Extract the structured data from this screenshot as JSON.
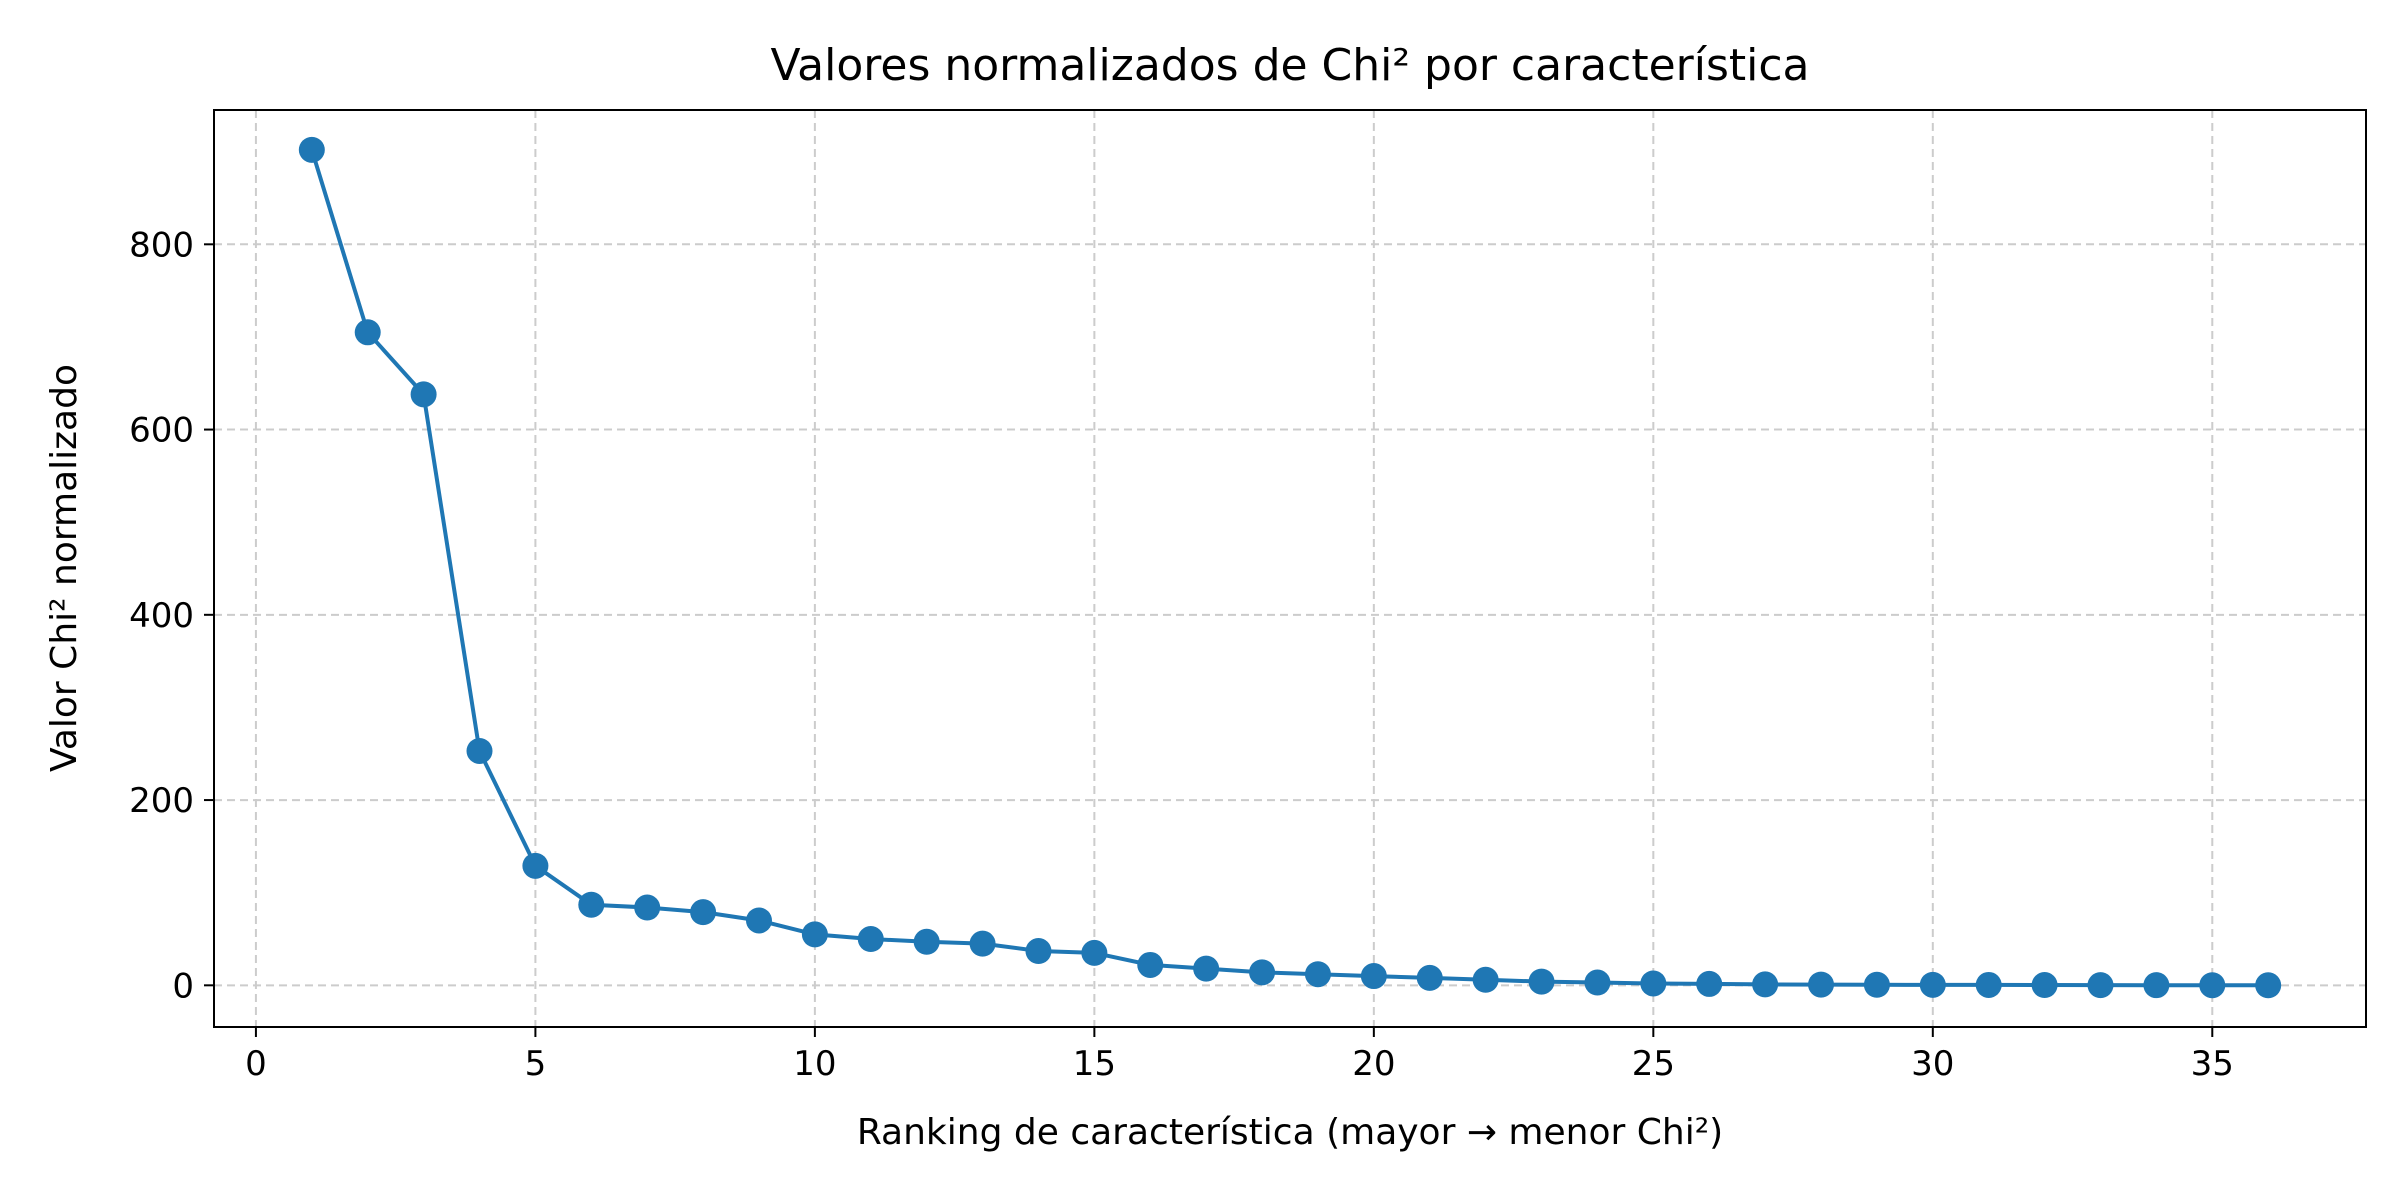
{
  "chart_data": {
    "type": "line",
    "title": "Valores normalizados de Chi² por característica",
    "xlabel": "Ranking de característica (mayor → menor Chi²)",
    "ylabel": "Valor Chi² normalizado",
    "xlim": [
      -0.75,
      37.75
    ],
    "ylim": [
      -45,
      945
    ],
    "xticks": [
      0,
      5,
      10,
      15,
      20,
      25,
      30,
      35
    ],
    "yticks": [
      0,
      200,
      400,
      600,
      800
    ],
    "grid": true,
    "colors": {
      "line": "#1f77b4",
      "grid": "#cccccc",
      "axis": "#000000"
    },
    "series": [
      {
        "x": [
          1,
          2,
          3,
          4,
          5,
          6,
          7,
          8,
          9,
          10,
          11,
          12,
          13,
          14,
          15,
          16,
          17,
          18,
          19,
          20,
          21,
          22,
          23,
          24,
          25,
          26,
          27,
          28,
          29,
          30,
          31,
          32,
          33,
          34,
          35,
          36
        ],
        "y": [
          902,
          705,
          638,
          253,
          129,
          87,
          84,
          79,
          70,
          55,
          50,
          47,
          45,
          37,
          35,
          22,
          18,
          14,
          12,
          10,
          8,
          6,
          4,
          3,
          2,
          1.5,
          1,
          0.8,
          0.6,
          0.5,
          0.4,
          0.3,
          0.2,
          0.15,
          0.1,
          0.05
        ]
      }
    ]
  }
}
